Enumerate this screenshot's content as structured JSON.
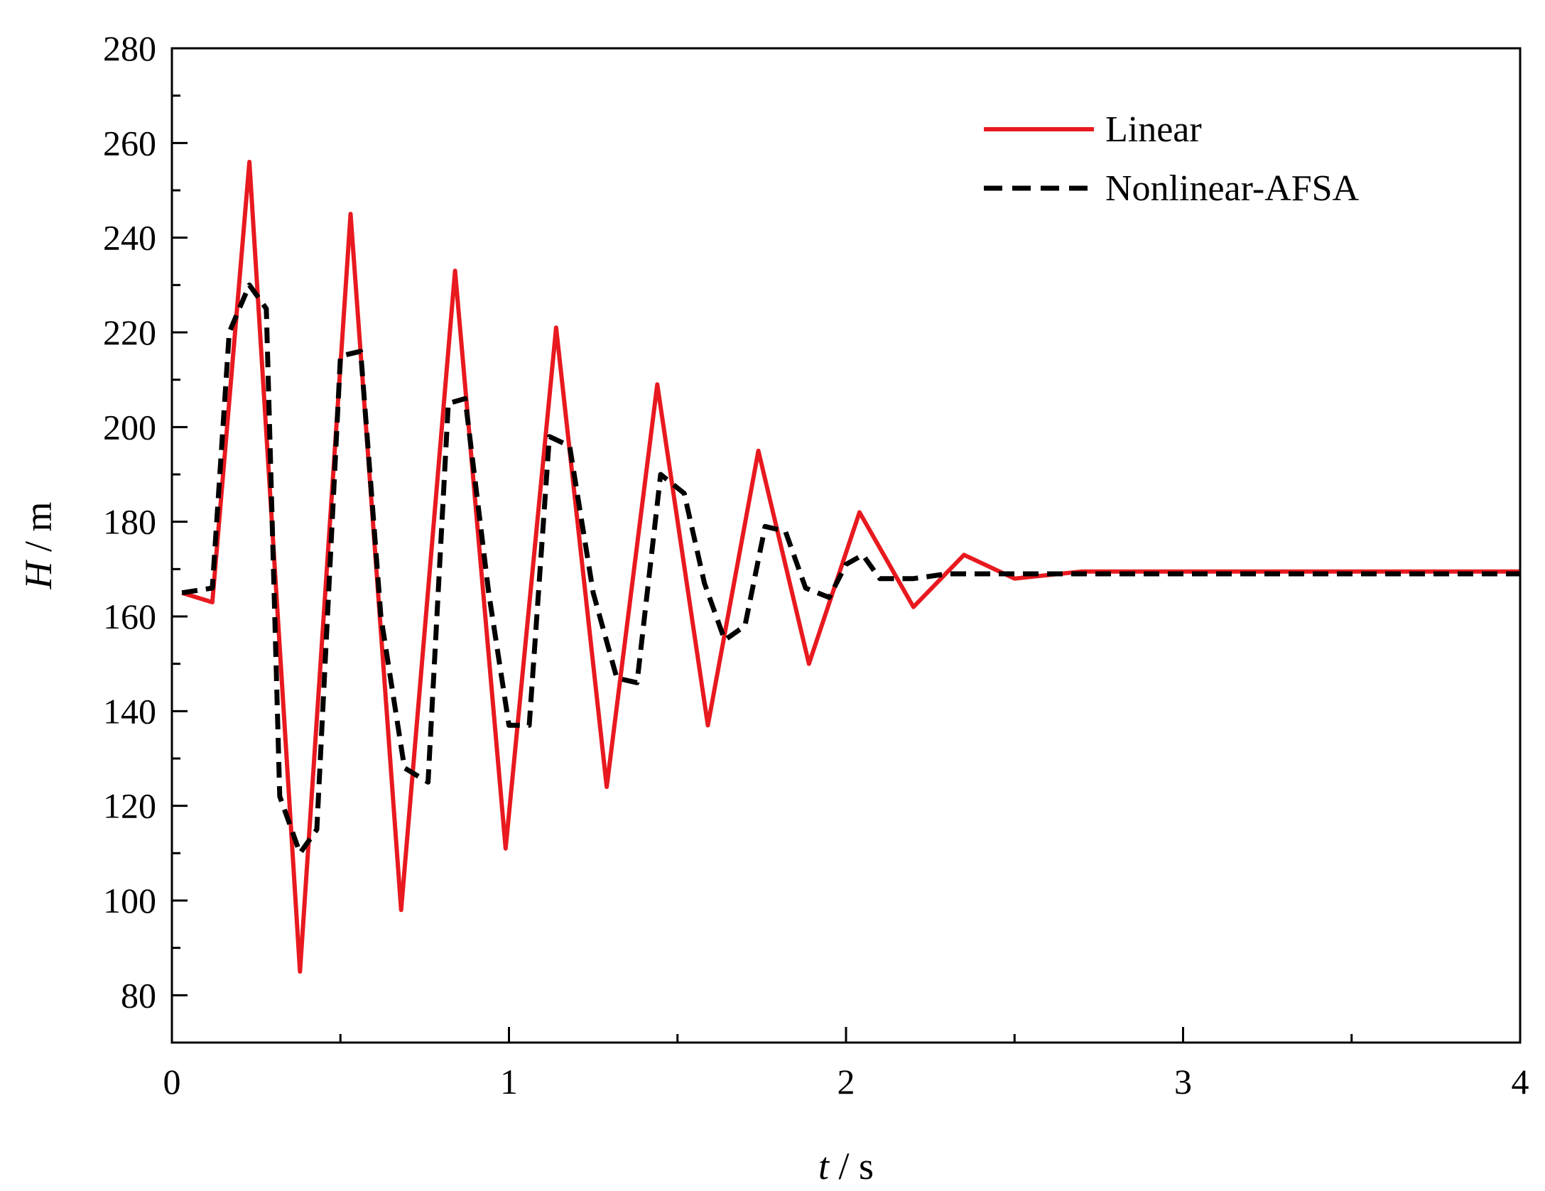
{
  "chart_data": {
    "type": "line",
    "title": "",
    "xlabel": {
      "var": "t",
      "unit": "s"
    },
    "ylabel": {
      "var": "H",
      "unit": "m"
    },
    "xlim": [
      0,
      4
    ],
    "ylim": [
      70,
      280
    ],
    "xticks": [
      0,
      1,
      2,
      3,
      4
    ],
    "yticks": [
      80,
      100,
      120,
      140,
      160,
      180,
      200,
      220,
      240,
      260,
      280
    ],
    "grid": false,
    "legend_position": "top-right",
    "series": [
      {
        "name": "Linear",
        "color": "#e8191f",
        "style": "solid",
        "x": [
          0.03,
          0.12,
          0.23,
          0.38,
          0.53,
          0.68,
          0.84,
          0.99,
          1.14,
          1.29,
          1.44,
          1.59,
          1.74,
          1.89,
          2.04,
          2.2,
          2.35,
          2.5,
          2.7,
          3.0,
          4.0
        ],
        "y": [
          165,
          163,
          256,
          85,
          245,
          98,
          233,
          111,
          221,
          124,
          209,
          137,
          195,
          150,
          182,
          162,
          173,
          168,
          169.5,
          169.5,
          169.5
        ]
      },
      {
        "name": "Nonlinear-AFSA",
        "color": "#000000",
        "style": "dashed",
        "x": [
          0.03,
          0.12,
          0.17,
          0.23,
          0.28,
          0.32,
          0.38,
          0.43,
          0.5,
          0.56,
          0.62,
          0.69,
          0.76,
          0.82,
          0.87,
          0.94,
          1.0,
          1.06,
          1.12,
          1.18,
          1.25,
          1.32,
          1.38,
          1.45,
          1.52,
          1.58,
          1.64,
          1.7,
          1.76,
          1.82,
          1.88,
          1.95,
          2.0,
          2.05,
          2.1,
          2.2,
          2.3,
          2.5,
          4.0
        ],
        "y": [
          165,
          166,
          220,
          230,
          225,
          122,
          110,
          115,
          215,
          216,
          160,
          128,
          125,
          205,
          206,
          165,
          137,
          137,
          198,
          196,
          165,
          147,
          146,
          190,
          186,
          167,
          155,
          158,
          179,
          178,
          166,
          164,
          171,
          173,
          168,
          168,
          169,
          169,
          169
        ]
      }
    ]
  }
}
